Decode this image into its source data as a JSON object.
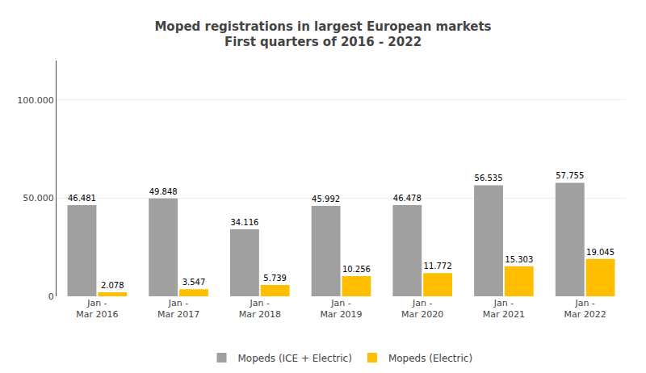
{
  "chart_data": {
    "type": "bar",
    "title": "Moped registrations in largest European markets",
    "subtitle": "First quarters of 2016 - 2022",
    "categories": [
      "Jan -\nMar 2016",
      "Jan -\nMar 2017",
      "Jan -\nMar 2018",
      "Jan -\nMar 2019",
      "Jan -\nMar 2020",
      "Jan -\nMar 2021",
      "Jan -\nMar 2022"
    ],
    "series": [
      {
        "name": "Mopeds (ICE + Electric)",
        "color": "#A0A0A0",
        "values": [
          46481,
          49848,
          34116,
          45992,
          46478,
          56535,
          57755
        ],
        "value_labels": [
          "46.481",
          "49.848",
          "34.116",
          "45.992",
          "46.478",
          "56.535",
          "57.755"
        ]
      },
      {
        "name": "Mopeds (Electric)",
        "color": "#FFBF00",
        "values": [
          2078,
          3547,
          5739,
          10256,
          11772,
          15303,
          19045
        ],
        "value_labels": [
          "2.078",
          "3.547",
          "5.739",
          "10.256",
          "11.772",
          "15.303",
          "19.045"
        ]
      }
    ],
    "ylim": [
      0,
      120000
    ],
    "yticks": [
      0,
      {
        "value": 50000,
        "label": "50.000"
      },
      {
        "value": 100000,
        "label": "100.000"
      }
    ],
    "grid": true,
    "legend": "bottom",
    "data_labels": true
  }
}
